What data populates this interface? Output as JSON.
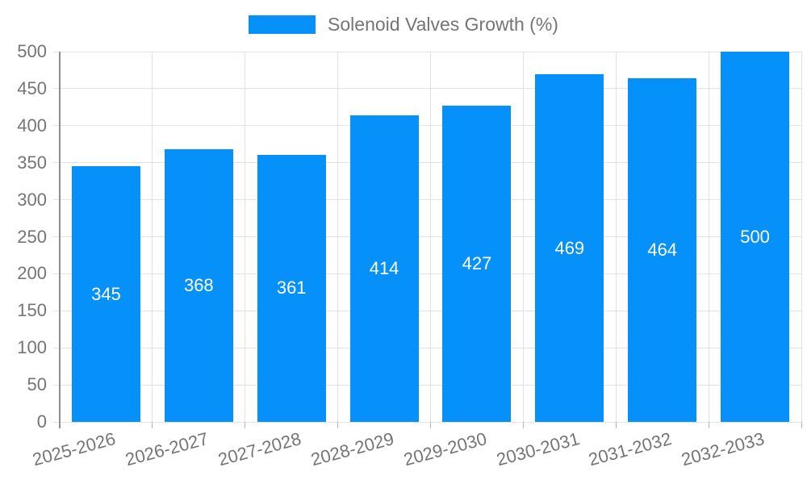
{
  "legend": {
    "label": "Solenoid Valves Growth (%)",
    "color": "#0690f9"
  },
  "chart_data": {
    "type": "bar",
    "title": "",
    "xlabel": "",
    "ylabel": "",
    "categories": [
      "2025-2026",
      "2026-2027",
      "2027-2028",
      "2028-2029",
      "2029-2030",
      "2030-2031",
      "2031-2032",
      "2032-2033"
    ],
    "series": [
      {
        "name": "Solenoid Valves Growth (%)",
        "values": [
          345,
          368,
          361,
          414,
          427,
          469,
          464,
          500
        ]
      }
    ],
    "value_labels": [
      "345",
      "368",
      "361",
      "414",
      "427",
      "469",
      "464",
      "500"
    ],
    "ylim": [
      0,
      500
    ],
    "yticks": [
      0,
      50,
      100,
      150,
      200,
      250,
      300,
      350,
      400,
      450,
      500
    ],
    "grid": true,
    "legend_position": "top",
    "colors": {
      "bar": "#0690f9",
      "value_label": "#ffffff",
      "grid": "#e2e2e2",
      "axis_line": "#8f8f8f",
      "tick_mark": "#b5b5b5",
      "tick_text": "#757575",
      "background": "#ffffff"
    }
  }
}
